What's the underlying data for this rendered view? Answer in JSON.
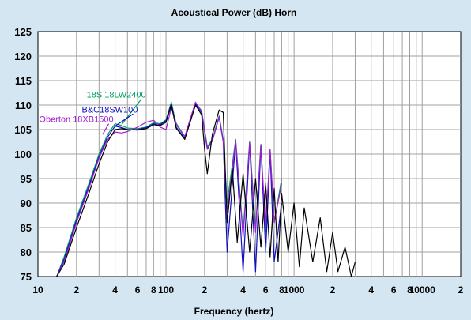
{
  "colors": {
    "background": "#d4e6f1",
    "plot_background": "#ffffff",
    "grid": "#a0a0a0"
  },
  "chart_data": {
    "type": "line",
    "title": "Acoustical Power (dB)    Horn",
    "xlabel": "Frequency (hertz)",
    "ylabel": "",
    "x_scale": "log",
    "xlim": [
      10,
      20000
    ],
    "ylim": [
      75,
      125
    ],
    "grid": true,
    "legend": "inline-labels",
    "y_ticks": [
      75,
      80,
      85,
      90,
      95,
      100,
      105,
      110,
      115,
      120,
      125
    ],
    "x_ticks": [
      {
        "value": 10,
        "label": "10"
      },
      {
        "value": 20,
        "label": "2"
      },
      {
        "value": 40,
        "label": "4"
      },
      {
        "value": 60,
        "label": "6"
      },
      {
        "value": 80,
        "label": "8"
      },
      {
        "value": 100,
        "label": "100"
      },
      {
        "value": 200,
        "label": "2"
      },
      {
        "value": 400,
        "label": "4"
      },
      {
        "value": 600,
        "label": "6"
      },
      {
        "value": 800,
        "label": "8"
      },
      {
        "value": 1000,
        "label": "1000"
      },
      {
        "value": 2000,
        "label": "2"
      },
      {
        "value": 4000,
        "label": "4"
      },
      {
        "value": 6000,
        "label": "6"
      },
      {
        "value": 8000,
        "label": "8"
      },
      {
        "value": 10000,
        "label": "10000"
      },
      {
        "value": 20000,
        "label": "2"
      }
    ],
    "series": [
      {
        "name": "18S 18LW2400",
        "color": "#00a060",
        "x": [
          14,
          16,
          20,
          25,
          30,
          35,
          40,
          45,
          50,
          60,
          70,
          80,
          90,
          100,
          110,
          120,
          140,
          170,
          190,
          210,
          230,
          260,
          280,
          300,
          350,
          400,
          450,
          500,
          550,
          600,
          650,
          700,
          800
        ],
        "y": [
          75,
          79,
          87,
          94,
          100,
          104,
          106.2,
          105.8,
          105.3,
          105.2,
          105.5,
          106.4,
          106.2,
          107,
          110.6,
          106,
          103.5,
          110.5,
          108.8,
          101.5,
          103,
          107.8,
          103,
          90,
          103,
          84,
          102.5,
          85,
          102,
          84,
          101,
          86,
          95
        ]
      },
      {
        "name": "B&C18SW100",
        "color": "#1010c0",
        "x": [
          14,
          16,
          20,
          25,
          30,
          35,
          40,
          45,
          50,
          60,
          70,
          80,
          90,
          100,
          110,
          120,
          140,
          170,
          190,
          210,
          230,
          260,
          280,
          300,
          350,
          400,
          450,
          500,
          550,
          600,
          650,
          700,
          800
        ],
        "y": [
          75,
          78.5,
          86.5,
          93.5,
          99.5,
          103.5,
          105.7,
          105.4,
          105,
          105,
          105.4,
          106.2,
          106,
          106.8,
          110.3,
          105.5,
          103.2,
          110.3,
          108.4,
          101,
          102.7,
          107.5,
          102.5,
          80,
          102.7,
          76,
          102.3,
          76,
          101.8,
          80,
          100.6,
          78,
          90
        ]
      },
      {
        "name": "Oberton 18XB1500",
        "color": "#a020d0",
        "x": [
          14,
          16,
          20,
          25,
          30,
          35,
          40,
          45,
          50,
          60,
          70,
          80,
          90,
          100,
          110,
          120,
          140,
          170,
          190,
          210,
          230,
          260,
          280,
          300,
          350,
          400,
          450,
          500,
          550,
          600,
          650,
          700,
          800
        ],
        "y": [
          75,
          78,
          86,
          93,
          99.2,
          103,
          104.5,
          104.3,
          104.6,
          105.5,
          106.5,
          106.9,
          105.5,
          105,
          109.5,
          106.3,
          103.6,
          110.6,
          108.6,
          101.2,
          102.8,
          107.6,
          102.8,
          88,
          102.8,
          83,
          102.3,
          84,
          101.8,
          85,
          101,
          86,
          94
        ]
      },
      {
        "name": "",
        "color": "#000000",
        "x": [
          14,
          16,
          20,
          25,
          30,
          35,
          40,
          45,
          50,
          60,
          70,
          80,
          90,
          100,
          110,
          120,
          140,
          170,
          190,
          200,
          210,
          230,
          260,
          280,
          300,
          330,
          360,
          400,
          450,
          500,
          550,
          600,
          650,
          700,
          750,
          800,
          900,
          1000,
          1100,
          1200,
          1400,
          1600,
          1800,
          2000,
          2200,
          2500,
          2800,
          3000
        ],
        "y": [
          74.5,
          77.5,
          85,
          92,
          98,
          102.5,
          105,
          105.2,
          105,
          104.9,
          105.2,
          106,
          105.8,
          106.5,
          110,
          105.3,
          103,
          110,
          108,
          101,
          96,
          104,
          109,
          108.5,
          86,
          97,
          82,
          96,
          80,
          95,
          81,
          94,
          79,
          93,
          78,
          92,
          80,
          90,
          77,
          89,
          78,
          87,
          76,
          84,
          76,
          81,
          75,
          78
        ]
      }
    ],
    "annotations": [
      {
        "text": "18S 18LW2400",
        "color": "#00a060",
        "x": 24,
        "y": 111.5,
        "arrow_to": [
          45,
          106
        ]
      },
      {
        "text": "B&C18SW100",
        "color": "#1010c0",
        "x": 22,
        "y": 108.5,
        "arrow_to": [
          40,
          105.7
        ]
      },
      {
        "text": "Oberton 18XB1500",
        "color": "#a020d0",
        "x": 10.2,
        "y": 106.5,
        "arrow_to": [
          32,
          104
        ]
      }
    ]
  }
}
